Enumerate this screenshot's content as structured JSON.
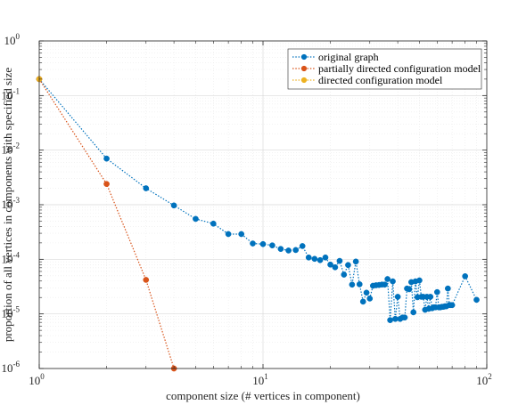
{
  "chart_data": {
    "type": "line",
    "title": "",
    "xlabel": "component size (# vertices in component)",
    "ylabel": "proportion of all vertices in components with specified size",
    "xscale": "log",
    "yscale": "log",
    "xlim": [
      1,
      100
    ],
    "ylim": [
      1e-06,
      1
    ],
    "grid": true,
    "legend_position": "top-right",
    "x_ticks": [
      {
        "value": 1,
        "base": "10",
        "exp": "0"
      },
      {
        "value": 10,
        "base": "10",
        "exp": "1"
      },
      {
        "value": 100,
        "base": "10",
        "exp": "2"
      }
    ],
    "y_ticks": [
      {
        "value": 1,
        "base": "10",
        "exp": "0"
      },
      {
        "value": 0.1,
        "base": "10",
        "exp": "-1"
      },
      {
        "value": 0.01,
        "base": "10",
        "exp": "-2"
      },
      {
        "value": 0.001,
        "base": "10",
        "exp": "-3"
      },
      {
        "value": 0.0001,
        "base": "10",
        "exp": "-4"
      },
      {
        "value": 1e-05,
        "base": "10",
        "exp": "-5"
      },
      {
        "value": 1e-06,
        "base": "10",
        "exp": "-6"
      }
    ],
    "series": [
      {
        "name": "original graph",
        "color": "#0072BD",
        "x": [
          1,
          2,
          3,
          4,
          5,
          6,
          7,
          8,
          9,
          10,
          11,
          12,
          13,
          14,
          15,
          16,
          17,
          18,
          19,
          20,
          21,
          22,
          23,
          24,
          25,
          26,
          27,
          28,
          29,
          30,
          31,
          32,
          33,
          34,
          35,
          36,
          37,
          38,
          39,
          40,
          41,
          42,
          43,
          44,
          45,
          46,
          47,
          48,
          49,
          50,
          51,
          52,
          53,
          54,
          55,
          56,
          57,
          58,
          59,
          60,
          61,
          62,
          63,
          64,
          65,
          66,
          67,
          68,
          69,
          70,
          80,
          90
        ],
        "y": [
          0.2,
          0.007,
          0.002,
          0.00097,
          0.00055,
          0.00045,
          0.00029,
          0.00029,
          0.000195,
          0.00019,
          0.00018,
          0.000155,
          0.000145,
          0.000148,
          0.000175,
          0.000108,
          0.000102,
          9.66e-05,
          0.000108,
          8e-05,
          7.15e-05,
          9.36e-05,
          5.24e-05,
          7.86e-05,
          3.44e-05,
          9.1e-05,
          3.49e-05,
          1.68e-05,
          2.45e-05,
          1.91e-05,
          3.28e-05,
          3.35e-05,
          3.39e-05,
          3.45e-05,
          3.45e-05,
          4.35e-05,
          7.7e-06,
          3.95e-05,
          8.1e-06,
          2.06e-05,
          8.1e-06,
          8.6e-06,
          8.6e-06,
          2.92e-05,
          2.83e-05,
          3.82e-05,
          1.07e-05,
          3.95e-05,
          2.02e-05,
          4.11e-05,
          2.06e-05,
          2.06e-05,
          1.19e-05,
          2.06e-05,
          1.24e-05,
          2.06e-05,
          1.27e-05,
          1.32e-05,
          1.32e-05,
          2.51e-05,
          1.32e-05,
          1.32e-05,
          1.35e-05,
          1.35e-05,
          1.38e-05,
          1.38e-05,
          2.92e-05,
          1.45e-05,
          1.45e-05,
          1.45e-05,
          4.9e-05,
          1.81e-05
        ]
      },
      {
        "name": "partially directed configuration model",
        "color": "#D95319",
        "x": [
          1,
          2,
          3,
          4
        ],
        "y": [
          0.2,
          0.0024,
          4.2e-05,
          1e-06
        ]
      },
      {
        "name": "directed configuration model",
        "color": "#EDB120",
        "x": [
          1
        ],
        "y": [
          0.2
        ]
      }
    ]
  }
}
